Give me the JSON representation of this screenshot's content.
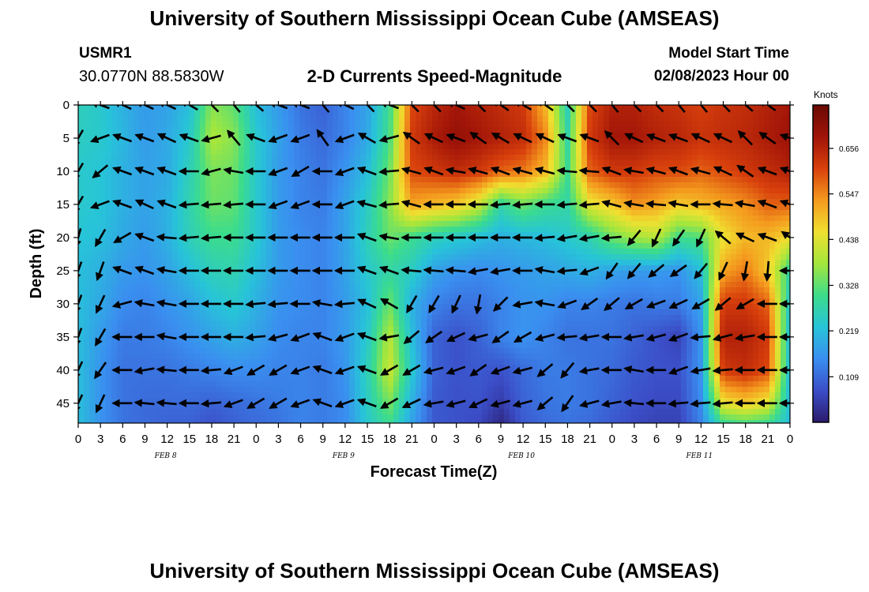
{
  "header": {
    "title": "University of Southern Mississippi Ocean Cube (AMSEAS)",
    "station_id": "USMR1",
    "station_coords": "30.0770N  88.5830W",
    "subtitle": "2-D Currents Speed-Magnitude",
    "model_start_label": "Model Start Time",
    "model_start_value": "02/08/2023 Hour 00"
  },
  "footer": {
    "title": "University of Southern Mississippi Ocean Cube (AMSEAS)"
  },
  "colors": {
    "axis": "#000000",
    "arrow": "#000000",
    "colormap": [
      "#2b1a6b",
      "#3b4ec8",
      "#3a8ef0",
      "#27c4d8",
      "#3cdc8c",
      "#a4e63c",
      "#f0e030",
      "#f49a1e",
      "#d8400c",
      "#a01408",
      "#6a0a04"
    ]
  },
  "chart_data": {
    "type": "heatmap",
    "title": "2-D Currents Speed-Magnitude",
    "xlabel": "Forecast Time(Z)",
    "ylabel": "Depth (ft)",
    "x_tick_labels": [
      "0",
      "3",
      "6",
      "9",
      "12",
      "15",
      "18",
      "21",
      "0",
      "3",
      "6",
      "9",
      "12",
      "15",
      "18",
      "21",
      "0",
      "3",
      "6",
      "9",
      "12",
      "15",
      "18",
      "21",
      "0",
      "3",
      "6",
      "9",
      "12",
      "15",
      "18",
      "21",
      "0"
    ],
    "day_labels": [
      "FEB 8",
      "FEB 9",
      "FEB 10",
      "FEB 11"
    ],
    "y_ticks": [
      0,
      5,
      10,
      15,
      20,
      25,
      30,
      35,
      40,
      45
    ],
    "y_range": [
      0,
      48
    ],
    "x_range_hours": [
      0,
      96
    ],
    "colorbar": {
      "label": "Knots",
      "ticks": [
        "0.109",
        "0.219",
        "0.328",
        "0.438",
        "0.547",
        "0.656"
      ],
      "range": [
        0.0,
        0.76
      ]
    },
    "depths_ft": [
      0,
      5,
      10,
      15,
      20,
      25,
      30,
      35,
      40,
      45,
      48
    ],
    "hours": [
      0,
      3,
      6,
      9,
      12,
      15,
      18,
      21,
      24,
      27,
      30,
      33,
      36,
      39,
      42,
      45,
      48,
      51,
      54,
      57,
      60,
      63,
      66,
      69,
      72,
      75,
      78,
      81,
      84,
      87,
      90,
      93,
      96
    ],
    "speed_knots": [
      [
        0.26,
        0.24,
        0.2,
        0.17,
        0.18,
        0.22,
        0.36,
        0.33,
        0.22,
        0.17,
        0.12,
        0.1,
        0.14,
        0.18,
        0.3,
        0.6,
        0.65,
        0.68,
        0.66,
        0.64,
        0.62,
        0.5,
        0.26,
        0.6,
        0.66,
        0.66,
        0.64,
        0.63,
        0.61,
        0.63,
        0.64,
        0.66,
        0.68
      ],
      [
        0.25,
        0.24,
        0.21,
        0.17,
        0.19,
        0.24,
        0.39,
        0.36,
        0.24,
        0.18,
        0.13,
        0.11,
        0.14,
        0.19,
        0.31,
        0.62,
        0.67,
        0.7,
        0.68,
        0.66,
        0.64,
        0.55,
        0.28,
        0.62,
        0.68,
        0.68,
        0.66,
        0.65,
        0.63,
        0.64,
        0.65,
        0.67,
        0.69
      ],
      [
        0.24,
        0.23,
        0.2,
        0.18,
        0.19,
        0.26,
        0.35,
        0.34,
        0.24,
        0.17,
        0.14,
        0.12,
        0.16,
        0.22,
        0.34,
        0.6,
        0.62,
        0.64,
        0.62,
        0.58,
        0.56,
        0.5,
        0.3,
        0.58,
        0.62,
        0.62,
        0.6,
        0.6,
        0.58,
        0.6,
        0.62,
        0.64,
        0.66
      ],
      [
        0.24,
        0.23,
        0.2,
        0.18,
        0.2,
        0.27,
        0.34,
        0.33,
        0.24,
        0.17,
        0.14,
        0.13,
        0.18,
        0.25,
        0.36,
        0.52,
        0.5,
        0.48,
        0.42,
        0.28,
        0.34,
        0.3,
        0.28,
        0.44,
        0.48,
        0.54,
        0.52,
        0.48,
        0.5,
        0.52,
        0.54,
        0.58,
        0.58
      ],
      [
        0.23,
        0.22,
        0.19,
        0.17,
        0.2,
        0.26,
        0.3,
        0.3,
        0.24,
        0.17,
        0.15,
        0.14,
        0.18,
        0.26,
        0.34,
        0.3,
        0.26,
        0.24,
        0.22,
        0.2,
        0.21,
        0.22,
        0.24,
        0.27,
        0.34,
        0.38,
        0.4,
        0.3,
        0.32,
        0.45,
        0.5,
        0.5,
        0.46
      ],
      [
        0.22,
        0.2,
        0.17,
        0.16,
        0.18,
        0.22,
        0.26,
        0.27,
        0.22,
        0.17,
        0.15,
        0.14,
        0.18,
        0.24,
        0.28,
        0.25,
        0.18,
        0.16,
        0.15,
        0.16,
        0.17,
        0.18,
        0.19,
        0.2,
        0.18,
        0.17,
        0.17,
        0.16,
        0.22,
        0.52,
        0.56,
        0.48,
        0.28
      ],
      [
        0.22,
        0.19,
        0.15,
        0.14,
        0.16,
        0.18,
        0.22,
        0.24,
        0.2,
        0.16,
        0.15,
        0.14,
        0.17,
        0.22,
        0.34,
        0.2,
        0.14,
        0.12,
        0.12,
        0.14,
        0.16,
        0.16,
        0.14,
        0.14,
        0.13,
        0.12,
        0.13,
        0.13,
        0.18,
        0.62,
        0.62,
        0.58,
        0.24
      ],
      [
        0.22,
        0.17,
        0.13,
        0.13,
        0.14,
        0.16,
        0.18,
        0.2,
        0.18,
        0.15,
        0.14,
        0.14,
        0.17,
        0.24,
        0.4,
        0.22,
        0.1,
        0.08,
        0.1,
        0.14,
        0.16,
        0.14,
        0.12,
        0.12,
        0.12,
        0.1,
        0.08,
        0.06,
        0.16,
        0.66,
        0.66,
        0.62,
        0.22
      ],
      [
        0.22,
        0.16,
        0.12,
        0.12,
        0.12,
        0.13,
        0.14,
        0.15,
        0.15,
        0.14,
        0.14,
        0.13,
        0.16,
        0.26,
        0.42,
        0.24,
        0.1,
        0.08,
        0.09,
        0.08,
        0.11,
        0.13,
        0.13,
        0.12,
        0.11,
        0.09,
        0.08,
        0.08,
        0.16,
        0.62,
        0.64,
        0.6,
        0.22
      ],
      [
        0.22,
        0.16,
        0.12,
        0.11,
        0.11,
        0.11,
        0.1,
        0.11,
        0.12,
        0.13,
        0.14,
        0.13,
        0.15,
        0.25,
        0.35,
        0.2,
        0.09,
        0.08,
        0.08,
        0.05,
        0.1,
        0.12,
        0.13,
        0.12,
        0.1,
        0.08,
        0.07,
        0.07,
        0.15,
        0.45,
        0.48,
        0.44,
        0.22
      ],
      [
        0.22,
        0.16,
        0.12,
        0.11,
        0.1,
        0.1,
        0.08,
        0.1,
        0.11,
        0.12,
        0.14,
        0.13,
        0.15,
        0.24,
        0.3,
        0.18,
        0.09,
        0.08,
        0.07,
        0.02,
        0.09,
        0.11,
        0.12,
        0.11,
        0.09,
        0.07,
        0.06,
        0.06,
        0.14,
        0.3,
        0.32,
        0.3,
        0.22
      ]
    ],
    "arrow_depths_ft": [
      0,
      5,
      10,
      15,
      20,
      25,
      30,
      35,
      40,
      45
    ],
    "arrow_direction_deg": [
      [
        160,
        200,
        205,
        205,
        205,
        210,
        225,
        230,
        220,
        200,
        200,
        230,
        205,
        225,
        200,
        225,
        225,
        205,
        225,
        215,
        210,
        215,
        225,
        225,
        230,
        225,
        225,
        230,
        230,
        225,
        220,
        215,
        235
      ],
      [
        120,
        160,
        200,
        200,
        205,
        200,
        165,
        230,
        200,
        160,
        160,
        235,
        160,
        210,
        165,
        215,
        205,
        200,
        215,
        210,
        205,
        205,
        200,
        200,
        225,
        205,
        200,
        200,
        205,
        205,
        225,
        215,
        200
      ],
      [
        120,
        140,
        200,
        200,
        200,
        180,
        165,
        190,
        180,
        160,
        150,
        180,
        160,
        200,
        175,
        195,
        200,
        190,
        195,
        200,
        195,
        195,
        185,
        185,
        200,
        190,
        195,
        200,
        195,
        205,
        215,
        200,
        200
      ],
      [
        120,
        160,
        200,
        205,
        200,
        175,
        175,
        175,
        180,
        160,
        160,
        180,
        160,
        195,
        175,
        195,
        180,
        180,
        180,
        175,
        175,
        180,
        175,
        175,
        195,
        190,
        185,
        190,
        180,
        185,
        190,
        200,
        200
      ],
      [
        105,
        120,
        150,
        200,
        185,
        175,
        175,
        180,
        180,
        180,
        180,
        180,
        180,
        200,
        190,
        180,
        180,
        180,
        180,
        180,
        180,
        175,
        170,
        170,
        175,
        130,
        115,
        125,
        115,
        220,
        205,
        200,
        215
      ],
      [
        110,
        110,
        200,
        200,
        190,
        180,
        180,
        180,
        180,
        180,
        180,
        180,
        180,
        200,
        200,
        185,
        185,
        185,
        170,
        170,
        180,
        190,
        175,
        160,
        125,
        130,
        140,
        145,
        130,
        115,
        100,
        95,
        180
      ],
      [
        110,
        115,
        165,
        190,
        190,
        180,
        180,
        180,
        175,
        175,
        180,
        190,
        175,
        205,
        210,
        120,
        120,
        115,
        100,
        135,
        170,
        190,
        160,
        145,
        140,
        150,
        160,
        155,
        150,
        140,
        150,
        180,
        180
      ],
      [
        110,
        120,
        180,
        180,
        190,
        180,
        180,
        180,
        175,
        165,
        160,
        200,
        160,
        200,
        170,
        140,
        145,
        155,
        165,
        145,
        150,
        165,
        175,
        170,
        180,
        170,
        165,
        160,
        175,
        165,
        170,
        180,
        180
      ],
      [
        115,
        125,
        180,
        170,
        185,
        180,
        175,
        160,
        150,
        150,
        160,
        200,
        160,
        200,
        150,
        150,
        165,
        160,
        145,
        160,
        165,
        140,
        130,
        170,
        180,
        190,
        180,
        160,
        170,
        175,
        180,
        180,
        180
      ],
      [
        115,
        115,
        180,
        185,
        185,
        180,
        175,
        160,
        150,
        150,
        160,
        200,
        160,
        200,
        150,
        155,
        170,
        165,
        155,
        165,
        165,
        140,
        125,
        165,
        170,
        185,
        180,
        175,
        175,
        175,
        180,
        180,
        180
      ]
    ]
  }
}
